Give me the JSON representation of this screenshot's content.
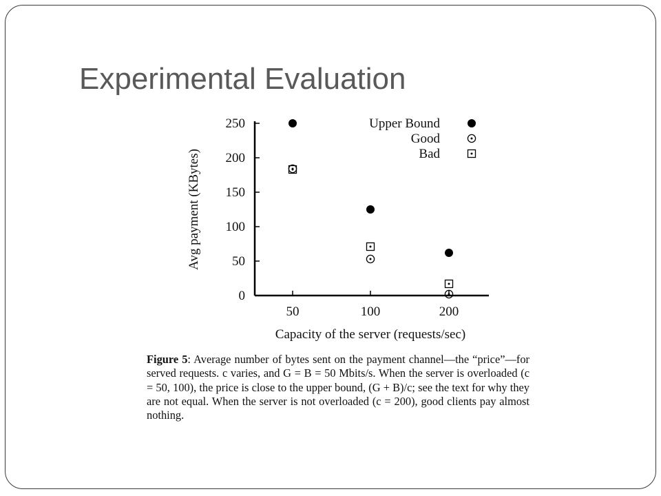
{
  "slide": {
    "title": "Experimental Evaluation"
  },
  "caption": {
    "label": "Figure 5",
    "text": ": Average number of bytes sent on the payment channel—the “price”—for served requests. c varies, and G = B = 50 Mbits/s. When the server is overloaded (c = 50, 100), the price is close to the upper bound, (G + B)/c; see the text for why they are not equal. When the server is not overloaded (c = 200), good clients pay almost nothing."
  },
  "chart_data": {
    "type": "scatter",
    "title": "",
    "xlabel": "Capacity of the server (requests/sec)",
    "ylabel": "Avg payment (KBytes)",
    "categories": [
      "50",
      "100",
      "200"
    ],
    "ylim": [
      0,
      250
    ],
    "yticks": [
      0,
      50,
      100,
      150,
      200,
      250
    ],
    "grid": false,
    "legend_position": "top-right",
    "series": [
      {
        "name": "Upper Bound",
        "marker": "filled-circle",
        "values": [
          250,
          125,
          62
        ]
      },
      {
        "name": "Good",
        "marker": "circle-dot",
        "values": [
          184,
          53,
          2
        ]
      },
      {
        "name": "Bad",
        "marker": "square-dot",
        "values": [
          183,
          71,
          17
        ]
      }
    ]
  }
}
